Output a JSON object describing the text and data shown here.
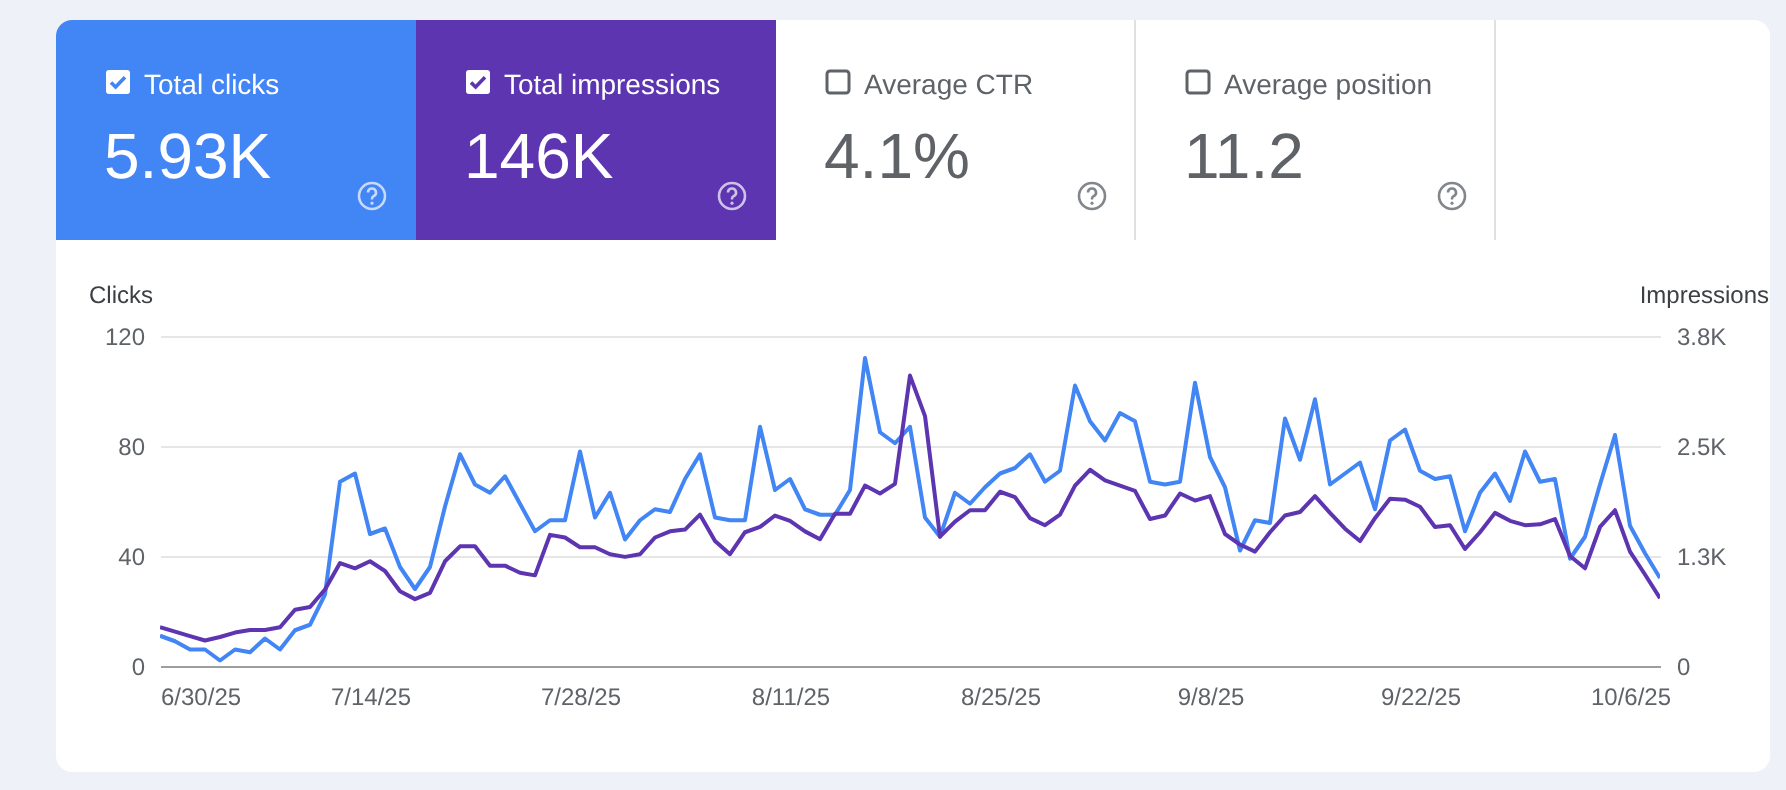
{
  "chart_data": {
    "type": "line",
    "ylabel": "Clicks",
    "y2label": "Impressions",
    "annotations": [
      "Total clicks",
      "5.93K",
      "Total impressions",
      "146K",
      "Average CTR",
      "4.1%",
      "Average position",
      "11.2"
    ],
    "x": [
      "2025-06-30",
      "2025-07-01",
      "2025-07-02",
      "2025-07-03",
      "2025-07-04",
      "2025-07-05",
      "2025-07-06",
      "2025-07-07",
      "2025-07-08",
      "2025-07-09",
      "2025-07-10",
      "2025-07-11",
      "2025-07-12",
      "2025-07-13",
      "2025-07-14",
      "2025-07-15",
      "2025-07-16",
      "2025-07-17",
      "2025-07-18",
      "2025-07-19",
      "2025-07-20",
      "2025-07-21",
      "2025-07-22",
      "2025-07-23",
      "2025-07-24",
      "2025-07-25",
      "2025-07-26",
      "2025-07-27",
      "2025-07-28",
      "2025-07-29",
      "2025-07-30",
      "2025-07-31",
      "2025-08-01",
      "2025-08-02",
      "2025-08-03",
      "2025-08-04",
      "2025-08-05",
      "2025-08-06",
      "2025-08-07",
      "2025-08-08",
      "2025-08-09",
      "2025-08-10",
      "2025-08-11",
      "2025-08-12",
      "2025-08-13",
      "2025-08-14",
      "2025-08-15",
      "2025-08-16",
      "2025-08-17",
      "2025-08-18",
      "2025-08-19",
      "2025-08-20",
      "2025-08-21",
      "2025-08-22",
      "2025-08-23",
      "2025-08-24",
      "2025-08-25",
      "2025-08-26",
      "2025-08-27",
      "2025-08-28",
      "2025-08-29",
      "2025-08-30",
      "2025-08-31",
      "2025-09-01",
      "2025-09-02",
      "2025-09-03",
      "2025-09-04",
      "2025-09-05",
      "2025-09-06",
      "2025-09-07",
      "2025-09-08",
      "2025-09-09",
      "2025-09-10",
      "2025-09-11",
      "2025-09-12",
      "2025-09-13",
      "2025-09-14",
      "2025-09-15",
      "2025-09-16",
      "2025-09-17",
      "2025-09-18",
      "2025-09-19",
      "2025-09-20",
      "2025-09-21",
      "2025-09-22",
      "2025-09-23",
      "2025-09-24",
      "2025-09-25",
      "2025-09-26",
      "2025-09-27",
      "2025-09-28",
      "2025-09-29",
      "2025-09-30",
      "2025-10-01",
      "2025-10-02",
      "2025-10-03",
      "2025-10-04",
      "2025-10-05",
      "2025-10-06",
      "2025-10-07",
      "2025-10-08"
    ],
    "series": [
      {
        "color": "#4285f4",
        "values": [
          11,
          9,
          6,
          6,
          2,
          6,
          5,
          10,
          6,
          13,
          15,
          26,
          67,
          70,
          48,
          50,
          36,
          28,
          36,
          58,
          77,
          66,
          63,
          69,
          59,
          49,
          53,
          53,
          78,
          54,
          63,
          46,
          53,
          57,
          56,
          68,
          77,
          54,
          53,
          53,
          87,
          64,
          68,
          57,
          55,
          55,
          64,
          112,
          85,
          81,
          87,
          54,
          47,
          63,
          59,
          65,
          70,
          72,
          77,
          67,
          71,
          102,
          89,
          82,
          92,
          89,
          67,
          66,
          67,
          103,
          76,
          65,
          42,
          53,
          52,
          90,
          75,
          97,
          66,
          70,
          74,
          57,
          82,
          86,
          71,
          68,
          69,
          49,
          63,
          70,
          60,
          78,
          67,
          68,
          39,
          47,
          66,
          84,
          51,
          41,
          32
        ]
      },
      {
        "color": "#5e35b1",
        "axis": "y2",
        "values": [
          440,
          390,
          340,
          290,
          330,
          380,
          410,
          410,
          440,
          640,
          670,
          870,
          1170,
          1110,
          1190,
          1080,
          850,
          760,
          830,
          1190,
          1360,
          1360,
          1140,
          1140,
          1060,
          1030,
          1490,
          1460,
          1350,
          1350,
          1270,
          1240,
          1270,
          1460,
          1530,
          1550,
          1720,
          1420,
          1270,
          1520,
          1580,
          1710,
          1650,
          1530,
          1440,
          1730,
          1730,
          2050,
          1960,
          2070,
          3300,
          2840,
          1470,
          1640,
          1770,
          1770,
          1980,
          1920,
          1680,
          1600,
          1720,
          2050,
          2230,
          2110,
          2050,
          1990,
          1670,
          1710,
          1960,
          1880,
          1930,
          1500,
          1380,
          1300,
          1520,
          1710,
          1750,
          1930,
          1740,
          1560,
          1420,
          1680,
          1900,
          1890,
          1810,
          1580,
          1600,
          1330,
          1520,
          1740,
          1650,
          1600,
          1610,
          1670,
          1250,
          1110,
          1580,
          1770,
          1300,
          1040,
          770
        ]
      }
    ],
    "xlim": [
      "2025-06-30",
      "2025-10-08"
    ],
    "xticks": [
      {
        "value": "2025-06-30",
        "label": "6/30/25"
      },
      {
        "value": "2025-07-14",
        "label": "7/14/25"
      },
      {
        "value": "2025-07-28",
        "label": "7/28/25"
      },
      {
        "value": "2025-08-11",
        "label": "8/11/25"
      },
      {
        "value": "2025-08-25",
        "label": "8/25/25"
      },
      {
        "value": "2025-09-08",
        "label": "9/8/25"
      },
      {
        "value": "2025-09-22",
        "label": "9/22/25"
      },
      {
        "value": "2025-10-06",
        "label": "10/6/25"
      }
    ],
    "ylim": [
      0,
      120
    ],
    "yticks": [
      0,
      40,
      80,
      120
    ],
    "y2lim": [
      0,
      3750
    ],
    "y2ticks": [
      0,
      {
        "value": 1250,
        "label": "1.3K"
      },
      {
        "value": 2500,
        "label": "2.5K"
      },
      {
        "value": 3750,
        "label": "3.8K"
      }
    ],
    "grid": "y",
    "marker": "none",
    "line_style": "solid"
  }
}
